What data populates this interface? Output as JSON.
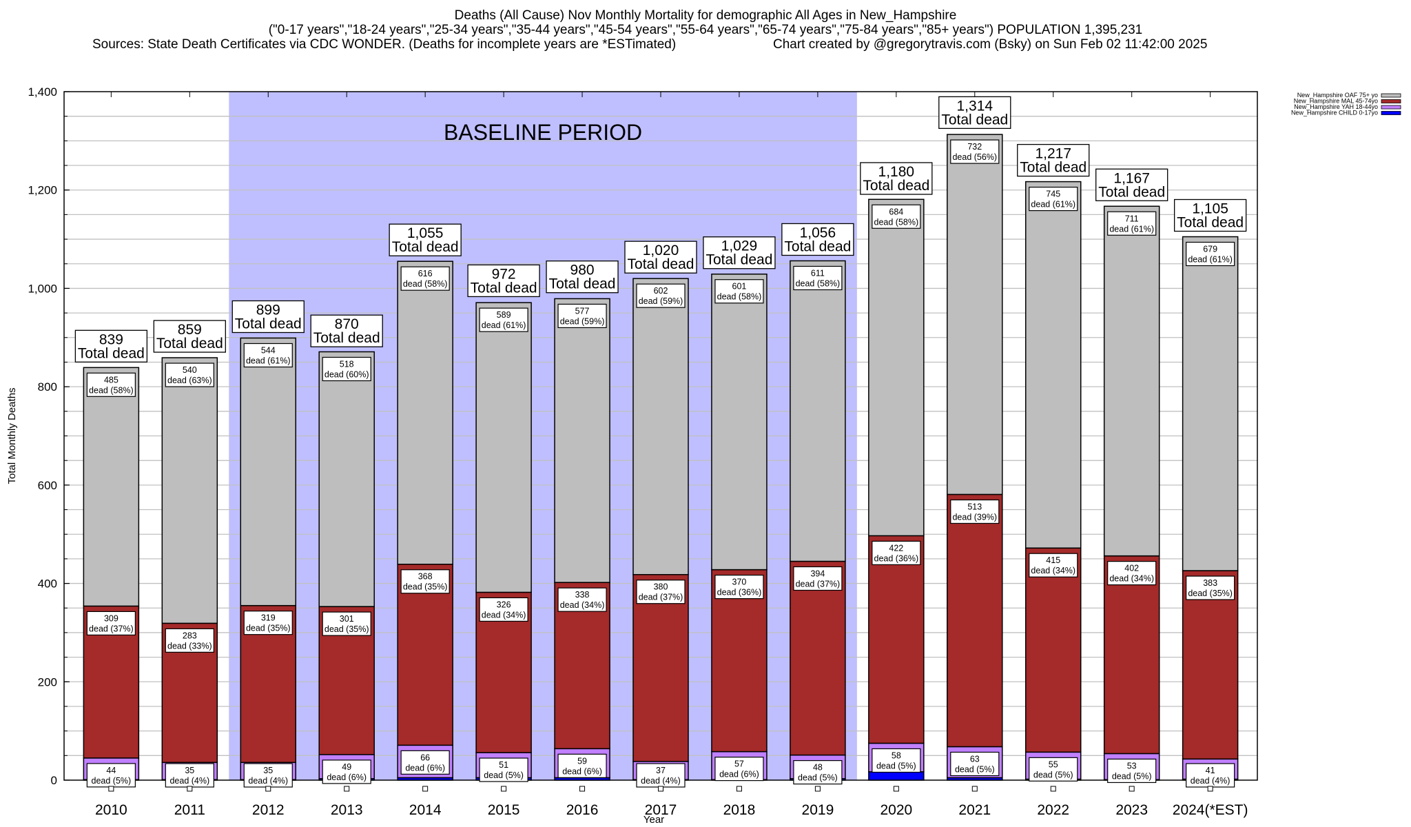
{
  "header": {
    "title_line1": "Deaths (All Cause) Nov Monthly Mortality for demographic All Ages in New_Hampshire",
    "title_line2": "(\"0-17 years\",\"18-24 years\",\"25-34 years\",\"35-44 years\",\"45-54 years\",\"55-64 years\",\"65-74 years\",\"75-84 years\",\"85+ years\") POPULATION 1,395,231",
    "sources": "Sources: State Death Certificates via CDC WONDER. (Deaths for incomplete years are *ESTimated)",
    "credit": "Chart created by @gregorytravis.com (Bsky) on Sun Feb 02 11:42:00 2025"
  },
  "chart_data": {
    "type": "bar",
    "stacked": true,
    "title": "Deaths (All Cause) Nov Monthly Mortality for demographic All Ages in New_Hampshire",
    "xlabel": "Year",
    "ylabel": "Total Monthly Deaths",
    "ylim": [
      0,
      1400
    ],
    "yticks": [
      0,
      200,
      400,
      600,
      800,
      1000,
      1200,
      1400
    ],
    "ytick_labels": [
      "0",
      "200",
      "400",
      "600",
      "800",
      "1,000",
      "1,200",
      "1,400"
    ],
    "grid": true,
    "legend_position": "top-right",
    "baseline_period": {
      "label": "BASELINE PERIOD",
      "from": "2012",
      "to": "2019",
      "color": "#bfbfff"
    },
    "categories": [
      "2010",
      "2011",
      "2012",
      "2013",
      "2014",
      "2015",
      "2016",
      "2017",
      "2018",
      "2019",
      "2020",
      "2021",
      "2022",
      "2023",
      "2024(*EST)"
    ],
    "totals": [
      839,
      859,
      899,
      870,
      1055,
      972,
      980,
      1020,
      1029,
      1056,
      1180,
      1314,
      1217,
      1167,
      1105
    ],
    "total_labels": [
      "839",
      "859",
      "899",
      "870",
      "1,055",
      "972",
      "980",
      "1,020",
      "1,029",
      "1,056",
      "1,180",
      "1,314",
      "1,217",
      "1,167",
      "1,105"
    ],
    "total_suffix": "Total dead",
    "series": [
      {
        "name": "New_Hampshire CHILD 0-17yo",
        "color": "#0000ff",
        "values": [
          1,
          1,
          1,
          3,
          5,
          5,
          5,
          1,
          1,
          3,
          17,
          5,
          2,
          1,
          2
        ]
      },
      {
        "name": "New_Hampshire YAH 18-44yo",
        "color": "#c080ff",
        "values": [
          44,
          35,
          35,
          49,
          66,
          51,
          59,
          37,
          57,
          48,
          58,
          63,
          55,
          53,
          41
        ],
        "pct": [
          "5%",
          "4%",
          "4%",
          "6%",
          "6%",
          "5%",
          "6%",
          "4%",
          "6%",
          "5%",
          "5%",
          "5%",
          "5%",
          "5%",
          "4%"
        ]
      },
      {
        "name": "New_Hampshire MAL 45-74yo",
        "color": "#a52a2a",
        "values": [
          309,
          283,
          319,
          301,
          368,
          326,
          338,
          380,
          370,
          394,
          422,
          513,
          415,
          402,
          383
        ],
        "pct": [
          "37%",
          "33%",
          "35%",
          "35%",
          "35%",
          "34%",
          "34%",
          "37%",
          "36%",
          "37%",
          "36%",
          "39%",
          "34%",
          "34%",
          "35%"
        ]
      },
      {
        "name": "New_Hampshire OAF 75+ yo",
        "color": "#bebebe",
        "values": [
          485,
          540,
          544,
          518,
          616,
          589,
          577,
          602,
          601,
          611,
          684,
          732,
          745,
          711,
          679
        ],
        "pct": [
          "58%",
          "63%",
          "61%",
          "60%",
          "58%",
          "61%",
          "59%",
          "59%",
          "58%",
          "58%",
          "58%",
          "56%",
          "61%",
          "61%",
          "61%"
        ]
      }
    ],
    "segment_label_word": "dead",
    "legend": [
      {
        "label": "New_Hampshire OAF 75+ yo",
        "color": "#bebebe"
      },
      {
        "label": "New_Hampshire MAL 45-74yo",
        "color": "#a52a2a"
      },
      {
        "label": "New_Hampshire YAH 18-44yo",
        "color": "#c080ff"
      },
      {
        "label": "New_Hampshire CHILD 0-17yo",
        "color": "#0000ff"
      }
    ]
  }
}
